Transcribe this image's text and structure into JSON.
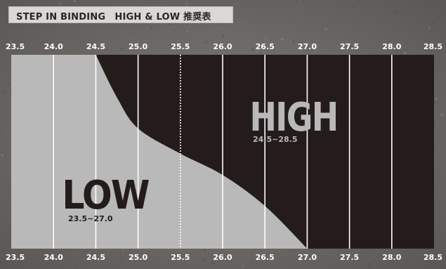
{
  "header": {
    "title": "STEP IN BINDING　HIGH & LOW  推奨表"
  },
  "colors": {
    "background": "#6f6c69",
    "low_zone": "#b9b9b9",
    "high_zone": "#231c1b",
    "gridline": "#ffffff",
    "tick_label": "#ffffff",
    "low_text": "#231c1b",
    "high_text": "#b9b9b9"
  },
  "chart_data": {
    "type": "area",
    "title": "STEP IN BINDING　HIGH & LOW  推奨表",
    "xlabel": "",
    "ylabel": "",
    "xlim": [
      23.5,
      28.5
    ],
    "x_ticks": [
      "23.5",
      "24.0",
      "24.5",
      "25.0",
      "25.5",
      "26.0",
      "26.5",
      "27.0",
      "27.5",
      "28.0",
      "28.5"
    ],
    "highlighted_tick": "25.5",
    "highlighted_tick_style": "dotted",
    "grid": true,
    "series": [
      {
        "name": "LOW",
        "range_label": "23.5~27.0",
        "range": [
          23.5,
          27.0
        ]
      },
      {
        "name": "HIGH",
        "range_label": "24.5~28.5",
        "range": [
          24.5,
          28.5
        ]
      }
    ],
    "boundary_curve": [
      {
        "x": 24.5,
        "y": 1.0
      },
      {
        "x": 24.75,
        "y": 0.78
      },
      {
        "x": 25.0,
        "y": 0.62
      },
      {
        "x": 25.5,
        "y": 0.49
      },
      {
        "x": 26.0,
        "y": 0.38
      },
      {
        "x": 26.5,
        "y": 0.22
      },
      {
        "x": 27.0,
        "y": 0.0
      }
    ]
  }
}
